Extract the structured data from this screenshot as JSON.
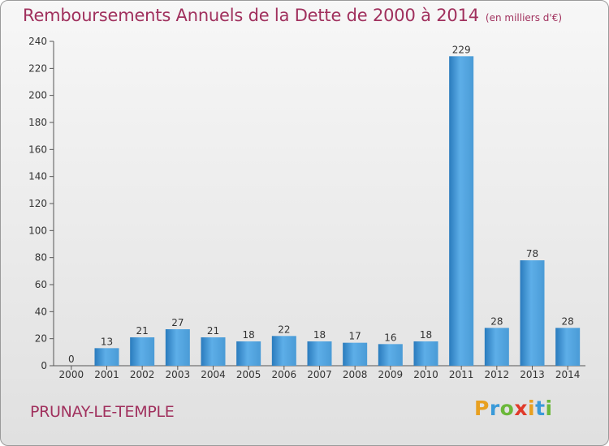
{
  "title": "Remboursements Annuels de la Dette de 2000 à 2014",
  "unit_note": "(en milliers d'€)",
  "city": "PRUNAY-LE-TEMPLE",
  "logo": {
    "letters": [
      "P",
      "r",
      "o",
      "x",
      "i",
      "t",
      "i"
    ],
    "colors": [
      "#e8a020",
      "#3a9ad9",
      "#6bb83a",
      "#e03a2a",
      "#e8a020",
      "#3a9ad9",
      "#6bb83a"
    ]
  },
  "colors": {
    "bar_light": "#5daee8",
    "bar_dark": "#2a7bbd",
    "title": "#a0305d"
  },
  "chart_data": {
    "type": "bar",
    "title": "Remboursements Annuels de la Dette de 2000 à 2014",
    "xlabel": "",
    "ylabel": "",
    "categories": [
      "2000",
      "2001",
      "2002",
      "2003",
      "2004",
      "2005",
      "2006",
      "2007",
      "2008",
      "2009",
      "2010",
      "2011",
      "2012",
      "2013",
      "2014"
    ],
    "values": [
      0,
      13,
      21,
      27,
      21,
      18,
      22,
      18,
      17,
      16,
      18,
      229,
      28,
      78,
      28
    ],
    "ylim": [
      0,
      240
    ],
    "yticks": [
      0,
      20,
      40,
      60,
      80,
      100,
      120,
      140,
      160,
      180,
      200,
      220,
      240
    ],
    "grid": false
  }
}
